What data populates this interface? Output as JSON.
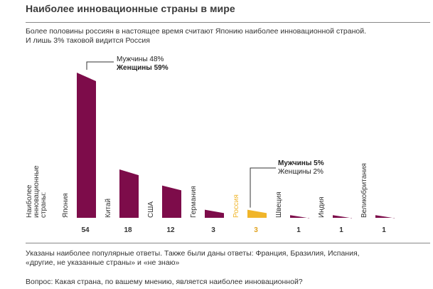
{
  "header": {
    "title": "Наиболее инновационные страны в мире",
    "subtitle_lines": [
      "Более половины россиян в настоящее время считают Японию наиболее инновационной страной.",
      "И лишь 3% таковой видится Россия"
    ]
  },
  "chart_data": {
    "type": "bar",
    "axis_label_lines": [
      "Наиболее",
      "инновационные",
      "страны:"
    ],
    "categories": [
      "Япония",
      "Китай",
      "США",
      "Германия",
      "Россия",
      "Швеция",
      "Индия",
      "Великобритания"
    ],
    "values": [
      54,
      18,
      12,
      3,
      3,
      1,
      1,
      1
    ],
    "highlight_index": 4,
    "colors": {
      "bar": "#7d0c4a",
      "highlight": "#f0b52a",
      "value_label": "#333333",
      "highlight_value_label": "#e0a21f"
    },
    "annotations": [
      {
        "target": "Япония",
        "lines": [
          {
            "text": "Мужчины  48%",
            "bold": false
          },
          {
            "text": "Женщины  59%",
            "bold": true
          }
        ]
      },
      {
        "target": "Россия",
        "lines": [
          {
            "text": "Мужчины  5%",
            "bold": true
          },
          {
            "text": "Женщины  2%",
            "bold": false
          }
        ]
      }
    ]
  },
  "footer": {
    "note_lines": [
      "Указаны наиболее популярные ответы. Также были даны ответы: Франция, Бразилия, Испания,",
      "«другие, не указанные страны» и «не знаю»"
    ],
    "question": "Вопрос: Какая страна, по вашему мнению, является наиболее инновационной?"
  }
}
